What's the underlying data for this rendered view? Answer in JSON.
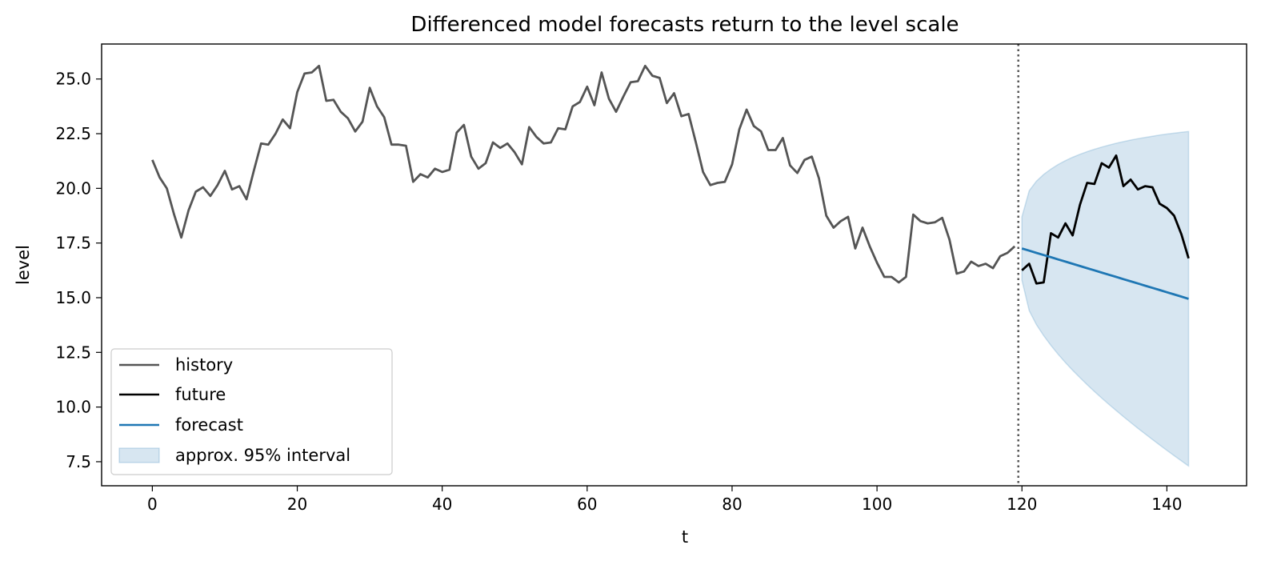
{
  "chart_data": {
    "type": "line",
    "title": "Differenced model forecasts return to the level scale",
    "xlabel": "t",
    "ylabel": "level",
    "xlim": [
      -7,
      151
    ],
    "ylim": [
      6.4,
      26.6
    ],
    "xticks": [
      0,
      20,
      40,
      60,
      80,
      100,
      120,
      140
    ],
    "yticks": [
      7.5,
      10.0,
      12.5,
      15.0,
      17.5,
      20.0,
      22.5,
      25.0
    ],
    "ytick_labels": [
      "7.5",
      "10.0",
      "12.5",
      "15.0",
      "17.5",
      "20.0",
      "22.5",
      "25.0"
    ],
    "grid": false,
    "legend_position": "lower-left",
    "forecast_origin": 119.5,
    "colors": {
      "history": "#555555",
      "future": "#000000",
      "forecast": "#1f77b4",
      "interval": "#1f77b4",
      "origin_line": "#555555"
    },
    "series": [
      {
        "name": "history",
        "x_start": 0,
        "values": [
          21.3,
          20.5,
          20.0,
          18.8,
          17.75,
          19.0,
          19.85,
          20.05,
          19.65,
          20.15,
          20.8,
          19.95,
          20.1,
          19.5,
          20.8,
          22.05,
          22.0,
          22.5,
          23.15,
          22.75,
          24.4,
          25.25,
          25.3,
          25.6,
          24.0,
          24.05,
          23.5,
          23.2,
          22.6,
          23.05,
          24.6,
          23.75,
          23.25,
          22.0,
          22.0,
          21.95,
          20.3,
          20.65,
          20.5,
          20.9,
          20.75,
          20.85,
          22.55,
          22.9,
          21.45,
          20.9,
          21.15,
          22.1,
          21.85,
          22.05,
          21.65,
          21.1,
          22.8,
          22.35,
          22.05,
          22.1,
          22.75,
          22.7,
          23.75,
          23.95,
          24.65,
          23.8,
          25.3,
          24.1,
          23.5,
          24.2,
          24.85,
          24.9,
          25.6,
          25.15,
          25.05,
          23.9,
          24.35,
          23.3,
          23.4,
          22.1,
          20.75,
          20.15,
          20.25,
          20.3,
          21.1,
          22.7,
          23.6,
          22.85,
          22.6,
          21.75,
          21.75,
          22.3,
          21.05,
          20.7,
          21.3,
          21.45,
          20.45,
          18.75,
          18.2,
          18.5,
          18.7,
          17.25,
          18.2,
          17.35,
          16.6,
          15.95,
          15.95,
          15.7,
          15.95,
          18.8,
          18.5,
          18.4,
          18.45,
          18.65,
          17.65,
          16.1,
          16.2,
          16.65,
          16.45,
          16.55,
          16.35,
          16.9,
          17.05,
          17.35
        ]
      },
      {
        "name": "future",
        "x_start": 120,
        "values": [
          16.25,
          16.55,
          15.65,
          15.7,
          17.95,
          17.75,
          18.4,
          17.85,
          19.25,
          20.25,
          20.2,
          21.15,
          20.95,
          21.5,
          20.1,
          20.4,
          19.95,
          20.1,
          20.05,
          19.3,
          19.1,
          18.75,
          17.9,
          16.8
        ]
      },
      {
        "name": "forecast",
        "x_start": 120,
        "values": [
          17.25,
          17.15,
          17.05,
          16.95,
          16.85,
          16.75,
          16.65,
          16.55,
          16.45,
          16.35,
          16.25,
          16.15,
          16.05,
          15.95,
          15.85,
          15.75,
          15.65,
          15.55,
          15.45,
          15.35,
          15.25,
          15.15,
          15.05,
          14.95
        ]
      }
    ],
    "interval": {
      "name": "approx. 95% interval",
      "x_start": 120,
      "x_end": 143,
      "center_start": 17.25,
      "center_end": 14.95,
      "half_width_start": 1.45,
      "half_width_end": 7.65
    }
  }
}
